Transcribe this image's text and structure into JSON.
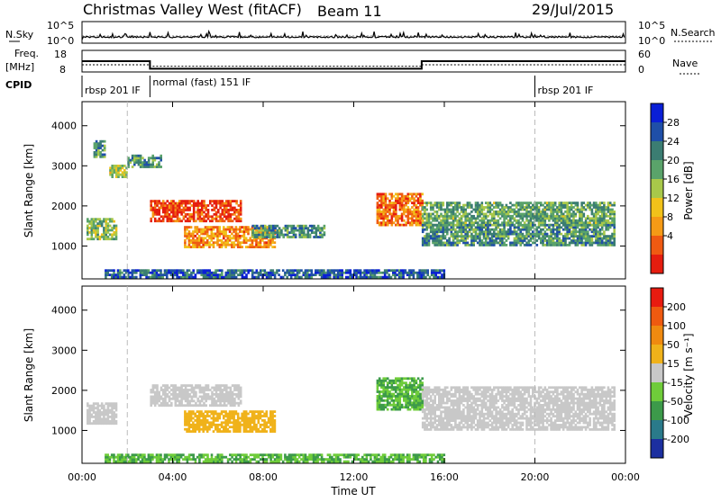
{
  "header": {
    "title": "Christmas Valley West (fitACF)",
    "beam": "Beam 11",
    "date": "29/Jul/2015"
  },
  "top_panels": {
    "nsky_label": "N.Sky",
    "nsky_ticks": [
      "10^5",
      "10^0"
    ],
    "nsearch_label": "N.Search",
    "nsearch_ticks": [
      "10^5",
      "10^0"
    ],
    "freq_label_1": "Freq.",
    "freq_label_2": "[MHz]",
    "freq_ticks": [
      "18",
      "8"
    ],
    "nave_label": "Nave",
    "nave_ticks": [
      "60",
      "0"
    ],
    "cpid_label": "CPID",
    "cpid_segments": [
      {
        "label": "rbsp 201 IF",
        "start": 0,
        "end": 3
      },
      {
        "label": "normal (fast) 151 IF",
        "start": 3,
        "end": 20
      },
      {
        "label": "rbsp 201 IF",
        "start": 20,
        "end": 24
      }
    ]
  },
  "axes": {
    "xlabel": "Time UT",
    "x_ticks": [
      "00:00",
      "04:00",
      "08:00",
      "12:00",
      "16:00",
      "20:00",
      "00:00"
    ],
    "ylabel": "Slant Range [km]",
    "y_ticks": [
      "1000",
      "2000",
      "3000",
      "4000"
    ]
  },
  "colorbars": {
    "power": {
      "label": "Power [dB]",
      "ticks": [
        "4",
        "8",
        "12",
        "16",
        "20",
        "24",
        "28"
      ],
      "colors": [
        "#0a1fd6",
        "#1f4fa8",
        "#3b7d72",
        "#5aa36a",
        "#a8c84a",
        "#f1c21a",
        "#f59a16",
        "#ef5a12",
        "#e51d0f"
      ]
    },
    "velocity": {
      "label": "Velocity [m s⁻¹]",
      "ticks": [
        "200",
        "100",
        "50",
        "15",
        "-15",
        "-50",
        "-100",
        "-200"
      ],
      "colors": [
        "#1c2fa0",
        "#2a7a8a",
        "#3c9a4a",
        "#6fcc3a",
        "#c8c8c8",
        "#f0b21a",
        "#f08a10",
        "#ef5a10",
        "#e81b10"
      ]
    }
  },
  "chart_data": {
    "type": "heatmap",
    "title": "Christmas Valley West (fitACF)",
    "subtitle": "Beam 11, 29/Jul/2015",
    "xlabel": "Time UT",
    "ylabel": "Slant Range [km]",
    "xlim": [
      0,
      24
    ],
    "ylim": [
      180,
      4600
    ],
    "series": [
      {
        "name": "Power [dB]",
        "regions": [
          {
            "t": [
              0.2,
              1.5
            ],
            "r": [
              1150,
              1700
            ],
            "v": 14
          },
          {
            "t": [
              0.5,
              1.0
            ],
            "r": [
              3200,
              3600
            ],
            "v": 10
          },
          {
            "t": [
              1.2,
              2.0
            ],
            "r": [
              2700,
              3000
            ],
            "v": 16
          },
          {
            "t": [
              2.0,
              3.5
            ],
            "r": [
              2950,
              3250
            ],
            "v": 10
          },
          {
            "t": [
              3.0,
              7.0
            ],
            "r": [
              1600,
              2100
            ],
            "v": 27
          },
          {
            "t": [
              4.5,
              8.5
            ],
            "r": [
              950,
              1500
            ],
            "v": 22
          },
          {
            "t": [
              7.5,
              10.7
            ],
            "r": [
              1200,
              1500
            ],
            "v": 10
          },
          {
            "t": [
              13.0,
              15.0
            ],
            "r": [
              1500,
              2300
            ],
            "v": 24
          },
          {
            "t": [
              15.0,
              23.5
            ],
            "r": [
              1500,
              2100
            ],
            "v": 12
          },
          {
            "t": [
              15.0,
              23.5
            ],
            "r": [
              1000,
              1500
            ],
            "v": 10
          },
          {
            "t": [
              1.0,
              16.0
            ],
            "r": [
              200,
              420
            ],
            "v": 6
          }
        ]
      },
      {
        "name": "Velocity [m s⁻¹]",
        "regions": [
          {
            "t": [
              0.2,
              1.5
            ],
            "r": [
              1150,
              1700
            ],
            "v": 0
          },
          {
            "t": [
              3.0,
              7.0
            ],
            "r": [
              1600,
              2100
            ],
            "v": 0
          },
          {
            "t": [
              4.5,
              8.5
            ],
            "r": [
              950,
              1500
            ],
            "v": -40
          },
          {
            "t": [
              13.0,
              15.0
            ],
            "r": [
              1500,
              2300
            ],
            "v": 30
          },
          {
            "t": [
              15.0,
              23.5
            ],
            "r": [
              1000,
              2100
            ],
            "v": 0
          },
          {
            "t": [
              1.0,
              16.0
            ],
            "r": [
              200,
              420
            ],
            "v": 30
          }
        ]
      }
    ],
    "nsky_range": [
      1,
      100000
    ],
    "freq_mhz": [
      {
        "t": [
          0,
          3
        ],
        "v": 13
      },
      {
        "t": [
          3,
          15
        ],
        "v": 9.5
      },
      {
        "t": [
          15,
          24
        ],
        "v": 13
      }
    ],
    "nave": [
      {
        "t": [
          0,
          3
        ],
        "v": 20
      },
      {
        "t": [
          3,
          15
        ],
        "v": 16
      },
      {
        "t": [
          15,
          24
        ],
        "v": 20
      }
    ],
    "vertical_markers_hours": [
      2,
      20
    ]
  }
}
